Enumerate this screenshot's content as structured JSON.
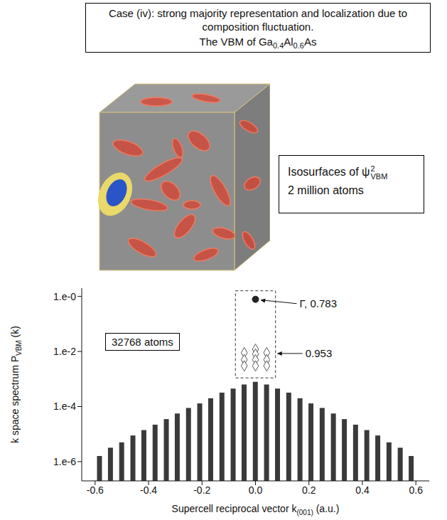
{
  "header": {
    "title": "Case (iv): strong majority representation and localization due to composition fluctuation.",
    "subtitle": [
      {
        "t": "The VBM of "
      },
      {
        "t": "Ga"
      },
      {
        "s": "0.4"
      },
      {
        "t": "Al"
      },
      {
        "s": "0.6"
      },
      {
        "t": "As"
      }
    ]
  },
  "inset_label": {
    "line1": {
      "text": "Isosurfaces of ψ",
      "sup": "2",
      "sub": "VBM"
    },
    "line2": "2 million atoms"
  },
  "chart_data": {
    "type": "bar",
    "log": "y",
    "ylabel": {
      "text": "k space spectrum P",
      "sub": "VBM",
      "after": " (k)"
    },
    "xlabel": {
      "text": "Supercell reciprocal vector k",
      "sub": "(001)",
      "after": " (a.u.)"
    },
    "inset_text": "32768 atoms",
    "xlim": [
      -0.65,
      0.65
    ],
    "xticks": [
      -0.6,
      -0.4,
      -0.2,
      {
        "value": 0,
        "label": "0.0"
      },
      0.2,
      0.4,
      0.6
    ],
    "ylim": [
      2e-07,
      2
    ],
    "yticks": [
      {
        "value": 1e-06,
        "label": "1.e-6"
      },
      {
        "value": 0.0001,
        "label": "1.e-4"
      },
      {
        "value": 0.01,
        "label": "1.e-2"
      },
      {
        "value": 1,
        "label": "1.e-0"
      }
    ],
    "x": [
      -0.583,
      -0.542,
      -0.5,
      -0.458,
      -0.417,
      -0.375,
      -0.333,
      -0.292,
      -0.25,
      -0.208,
      -0.167,
      -0.125,
      -0.083,
      -0.042,
      0,
      0.042,
      0.083,
      0.125,
      0.167,
      0.208,
      0.25,
      0.292,
      0.333,
      0.375,
      0.417,
      0.458,
      0.5,
      0.542,
      0.583
    ],
    "values": [
      1.6e-06,
      3.2e-06,
      5e-06,
      8.9e-06,
      1.4e-05,
      2.2e-05,
      3.5e-05,
      5.6e-05,
      8.9e-05,
      0.00013,
      0.0002,
      0.00032,
      0.00045,
      0.00063,
      0.00079,
      0.00063,
      0.00045,
      0.00032,
      0.0002,
      0.00013,
      8.9e-05,
      5.6e-05,
      3.5e-05,
      2.2e-05,
      1.4e-05,
      8.9e-06,
      5e-06,
      3.2e-06,
      1.6e-06
    ],
    "color": "#3a3a3a",
    "series": [
      {
        "type": "scatter",
        "marker": "diamond",
        "color": "#555555",
        "x": [
          0,
          0,
          0,
          0,
          -0.042,
          -0.042,
          -0.042,
          0.042,
          0.042,
          0.042
        ],
        "values": [
          0.012,
          0.008,
          0.005,
          0.003,
          0.009,
          0.005,
          0.003,
          0.009,
          0.005,
          0.003
        ]
      },
      {
        "type": "scatter",
        "marker": "circle",
        "color": "#222222",
        "x": [
          0
        ],
        "values": [
          0.783
        ],
        "value_labels": [
          "Γ, 0.783"
        ]
      }
    ],
    "annotations": [
      {
        "text": "0.953",
        "region": {
          "x": [
            -0.075,
            0.075
          ],
          "y": [
            0.0011,
            1.6
          ]
        }
      }
    ]
  }
}
